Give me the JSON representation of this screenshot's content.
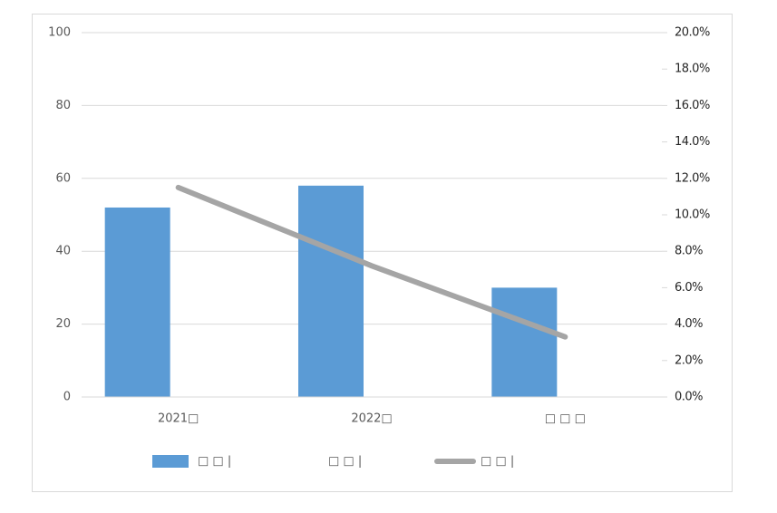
{
  "chart_data": {
    "type": "bar-line",
    "categories": [
      "2021□",
      "2022□",
      "□ □ □"
    ],
    "series": [
      {
        "name": "□ □ |",
        "color": "#5b9bd5",
        "type": "bar",
        "values": [
          52,
          58,
          30
        ]
      },
      {
        "name": "□ □ |",
        "color": "none",
        "type": "bar",
        "values": [
          null,
          null,
          null
        ]
      },
      {
        "name": "□ □ |",
        "color": "#a5a5a5",
        "type": "line",
        "axis": "y2",
        "values": [
          11.5,
          7.2,
          3.3
        ]
      }
    ],
    "ylim": [
      0,
      100
    ],
    "yticks": [
      0,
      20,
      40,
      60,
      80,
      100
    ],
    "y2lim": [
      0,
      20
    ],
    "y2ticks": [
      {
        "value": 0,
        "label": "0.0%"
      },
      {
        "value": 2,
        "label": "2.0%"
      },
      {
        "value": 4,
        "label": "4.0%"
      },
      {
        "value": 6,
        "label": "6.0%"
      },
      {
        "value": 8,
        "label": "8.0%"
      },
      {
        "value": 10,
        "label": "10.0%"
      },
      {
        "value": 12,
        "label": "12.0%"
      },
      {
        "value": 14,
        "label": "14.0%"
      },
      {
        "value": 16,
        "label": "16.0%"
      },
      {
        "value": 18,
        "label": "18.0%"
      },
      {
        "value": 20,
        "label": "20.0%"
      }
    ],
    "grid": true,
    "legend": "bottom"
  }
}
